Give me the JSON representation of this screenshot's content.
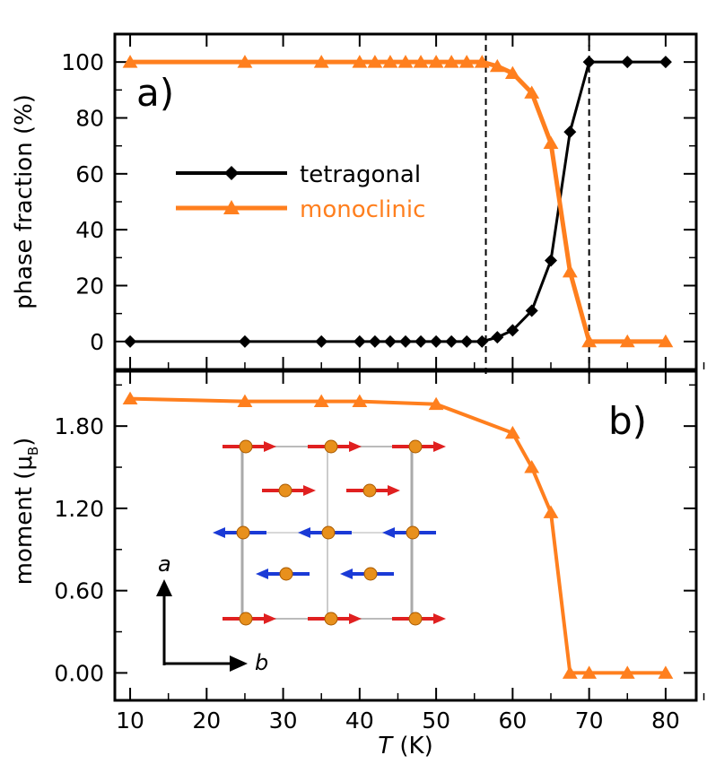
{
  "chart_data": [
    {
      "panel_label": "a)",
      "type": "line",
      "ylabel": "phase fraction (%)",
      "ylim": [
        -10,
        110
      ],
      "yticks": [
        0,
        20,
        40,
        60,
        80,
        100
      ],
      "ytick_labels": [
        "0",
        "20",
        "40",
        "60",
        "80",
        "100"
      ],
      "vlines": [
        56.5,
        70
      ],
      "legend_position": "center-left",
      "series": [
        {
          "name": "tetragonal",
          "color": "#000000",
          "marker": "diamond",
          "x": [
            10,
            25,
            35,
            40,
            42,
            44,
            46,
            48,
            50,
            52,
            54,
            56,
            58,
            60,
            62.5,
            65,
            67.5,
            70,
            75,
            80
          ],
          "y": [
            0,
            0,
            0,
            0,
            0,
            0,
            0,
            0,
            0,
            0,
            0,
            0,
            1.5,
            4,
            11,
            29,
            75,
            100,
            100,
            100
          ]
        },
        {
          "name": "monoclinic",
          "color": "#ff7f1e",
          "marker": "triangle",
          "x": [
            10,
            25,
            35,
            40,
            42,
            44,
            46,
            48,
            50,
            52,
            54,
            56,
            58,
            60,
            62.5,
            65,
            67.5,
            70,
            75,
            80
          ],
          "y": [
            100,
            100,
            100,
            100,
            100,
            100,
            100,
            100,
            100,
            100,
            100,
            100,
            98.5,
            96,
            89,
            71,
            25,
            0,
            0,
            0
          ]
        }
      ]
    },
    {
      "panel_label": "b)",
      "type": "line",
      "ylabel_main": "moment (μ",
      "ylabel_sub": "B",
      "ylabel_close": ")",
      "xlabel_var": "T",
      "xlabel_unit": " (K)",
      "xlim": [
        8,
        84
      ],
      "xticks": [
        10,
        20,
        30,
        40,
        50,
        60,
        70,
        80
      ],
      "xtick_labels": [
        "10",
        "20",
        "30",
        "40",
        "50",
        "60",
        "70",
        "80"
      ],
      "ylim": [
        -0.2,
        2.2
      ],
      "yticks": [
        0,
        0.6,
        1.2,
        1.8
      ],
      "ytick_labels": [
        "0.00",
        "0.60",
        "1.20",
        "1.80"
      ],
      "series": [
        {
          "color": "#ff7f1e",
          "marker": "triangle",
          "x": [
            10,
            25,
            35,
            40,
            50,
            60,
            62.5,
            65,
            67.5,
            70,
            75,
            80
          ],
          "y": [
            2.0,
            1.98,
            1.98,
            1.98,
            1.96,
            1.75,
            1.5,
            1.17,
            0.0,
            0.0,
            0.0,
            0.0
          ]
        }
      ],
      "inset": {
        "axis_a_label": "a",
        "axis_b_label": "b"
      }
    }
  ],
  "colors": {
    "orange": "#ff7f1e",
    "black": "#000000",
    "red_arrow": "#e02020",
    "blue_arrow": "#1a3ad6",
    "atom": "#e8901c"
  }
}
